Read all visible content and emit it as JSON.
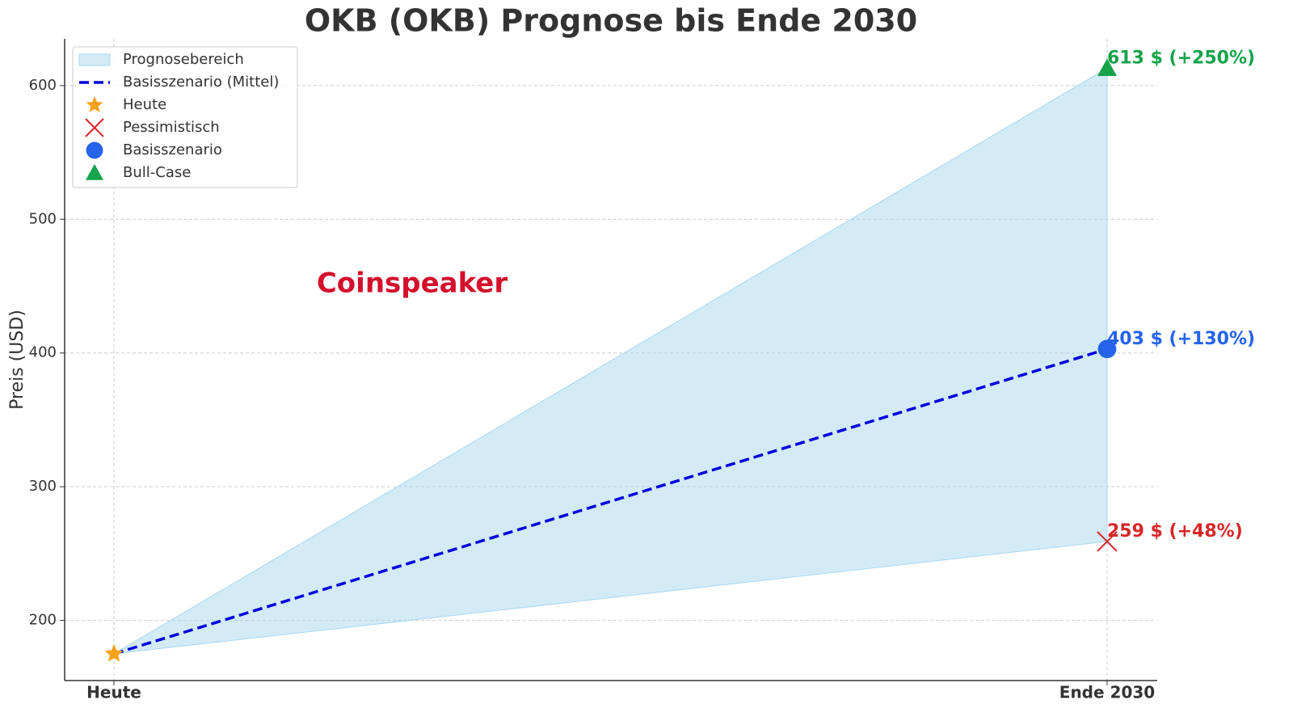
{
  "chart_data": {
    "type": "line",
    "title": "OKB (OKB) Prognose bis Ende 2030",
    "ylabel": "Preis (USD)",
    "watermark": "Coinspeaker",
    "categories": [
      "Heute",
      "Ende 2030"
    ],
    "ylim": [
      155,
      635
    ],
    "yticks": [
      200,
      300,
      400,
      500,
      600
    ],
    "grid": true,
    "legend": "upper left",
    "band": {
      "name": "Prognosebereich",
      "color": "#a8d8f0",
      "lower": [
        175,
        259
      ],
      "upper": [
        175,
        613
      ]
    },
    "series": [
      {
        "name": "Basisszenario (Mittel)",
        "color": "#0000dd",
        "dashed": true,
        "values": [
          175,
          403
        ]
      }
    ],
    "points": [
      {
        "name": "Heute",
        "marker": "star",
        "color": "#f5a11c",
        "values": [
          175,
          null
        ]
      },
      {
        "name": "Pessimistisch",
        "marker": "x",
        "color": "#d62728",
        "values": [
          null,
          259
        ],
        "value_labels": [
          null,
          "259 $ (+48%)"
        ]
      },
      {
        "name": "Basisszenario",
        "marker": "circle",
        "color": "#2563eb",
        "values": [
          null,
          403
        ],
        "value_labels": [
          null,
          "403 $ (+130%)"
        ]
      },
      {
        "name": "Bull-Case",
        "marker": "triangle",
        "color": "#16a34a",
        "values": [
          null,
          613
        ],
        "value_labels": [
          null,
          "613 $ (+250%)"
        ]
      }
    ]
  }
}
